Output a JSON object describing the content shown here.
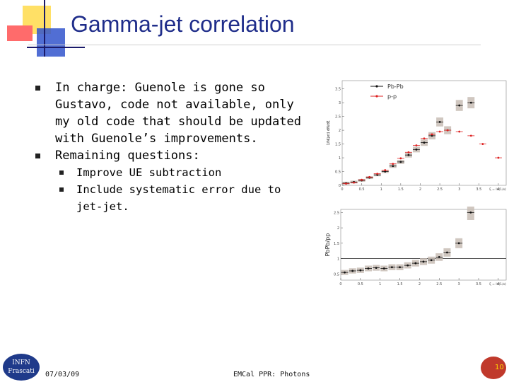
{
  "slide": {
    "title": "Gamma-jet correlation",
    "bullets": [
      "In charge: Guenole is gone so Gustavo, code not available, only my old code that should be updated with Guenole’s improvements.",
      "Remaining questions:"
    ],
    "sub_bullets": [
      "Improve UE subtraction",
      "Include systematic error due to jet-jet."
    ],
    "footer_date": "07/03/09",
    "footer_center": "EMCal PPR: Photons",
    "page_number": "10",
    "logo_left_text": "INFN Frascati"
  },
  "chart_data": [
    {
      "type": "scatter",
      "ylabel": "1/N(jet) dN/dξ",
      "xlabel": "ξ = ln(1/x)",
      "xlim": [
        0,
        4.2
      ],
      "ylim": [
        0,
        3.8
      ],
      "xticks": [
        "0",
        "0.5",
        "1",
        "1.5",
        "2",
        "2.5",
        "3",
        "3.5",
        "4"
      ],
      "yticks": [
        "0",
        "0.5",
        "1",
        "1.5",
        "2",
        "2.5",
        "3",
        "3.5"
      ],
      "legend": [
        "Pb-Pb",
        "p-p"
      ],
      "series": [
        {
          "name": "Pb-Pb",
          "color": "#111111",
          "x": [
            0.1,
            0.3,
            0.5,
            0.7,
            0.9,
            1.1,
            1.3,
            1.5,
            1.7,
            1.9,
            2.1,
            2.3,
            2.5,
            2.7,
            3.0,
            3.3
          ],
          "y": [
            0.08,
            0.12,
            0.18,
            0.28,
            0.38,
            0.5,
            0.7,
            0.85,
            1.1,
            1.3,
            1.55,
            1.8,
            2.3,
            2.0,
            2.9,
            3.0
          ]
        },
        {
          "name": "p-p",
          "color": "#dd2222",
          "x": [
            0.1,
            0.3,
            0.5,
            0.7,
            0.9,
            1.1,
            1.3,
            1.5,
            1.7,
            1.9,
            2.1,
            2.3,
            2.5,
            2.7,
            3.0,
            3.3,
            3.6,
            4.0
          ],
          "y": [
            0.06,
            0.1,
            0.2,
            0.3,
            0.42,
            0.55,
            0.78,
            0.98,
            1.2,
            1.45,
            1.7,
            1.85,
            1.95,
            2.0,
            1.95,
            1.8,
            1.5,
            1.0
          ]
        }
      ]
    },
    {
      "type": "scatter",
      "ylabel": "PbPb/pp",
      "xlabel": "ξ = ln(1/x)",
      "xlim": [
        0,
        4.2
      ],
      "ylim": [
        0.3,
        2.6
      ],
      "xticks": [
        "0",
        "0.5",
        "1",
        "1.5",
        "2",
        "2.5",
        "3",
        "3.5",
        "4"
      ],
      "yticks": [
        "0.5",
        "1",
        "1.5",
        "2",
        "2.5"
      ],
      "reference_line": 1,
      "series": [
        {
          "name": "PbPb/pp",
          "color": "#111111",
          "x": [
            0.1,
            0.3,
            0.5,
            0.7,
            0.9,
            1.1,
            1.3,
            1.5,
            1.7,
            1.9,
            2.1,
            2.3,
            2.5,
            2.7,
            3.0,
            3.3
          ],
          "y": [
            0.55,
            0.6,
            0.62,
            0.68,
            0.7,
            0.68,
            0.72,
            0.72,
            0.78,
            0.85,
            0.9,
            0.95,
            1.05,
            1.2,
            1.5,
            2.5
          ]
        }
      ]
    }
  ]
}
